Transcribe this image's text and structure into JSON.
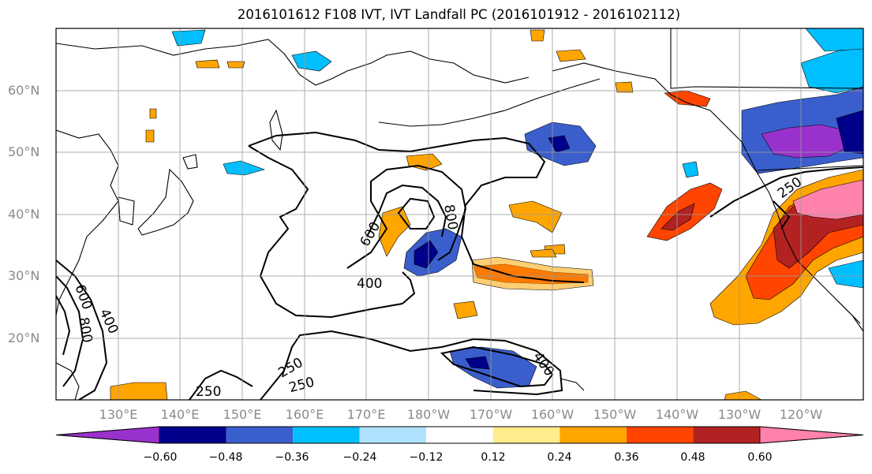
{
  "title": "2016101612 F108 IVT, IVT Landfall PC (2016101912 - 2016102112)",
  "lat_labels": [
    "60°N",
    "50°N",
    "40°N",
    "30°N",
    "20°N"
  ],
  "lon_labels": [
    "130°E",
    "140°E",
    "150°E",
    "160°E",
    "170°E",
    "180°W",
    "170°W",
    "160°W",
    "150°W",
    "140°W",
    "130°W",
    "120°W"
  ],
  "contour_labels": [
    "600",
    "800",
    "400",
    "250",
    "250",
    "250",
    "400",
    "400",
    "600",
    "800",
    "250"
  ],
  "colorbar": {
    "ticks": [
      "−0.60",
      "−0.48",
      "−0.36",
      "−0.24",
      "−0.12",
      "0.12",
      "0.24",
      "0.36",
      "0.48",
      "0.60"
    ],
    "colors": [
      "#9932cc",
      "#00008b",
      "#3a5fcd",
      "#00bfff",
      "#b0e2ff",
      "#ffffff",
      "#ffec8b",
      "#ffa500",
      "#ff4500",
      "#b22222",
      "#ff82ab"
    ]
  }
}
